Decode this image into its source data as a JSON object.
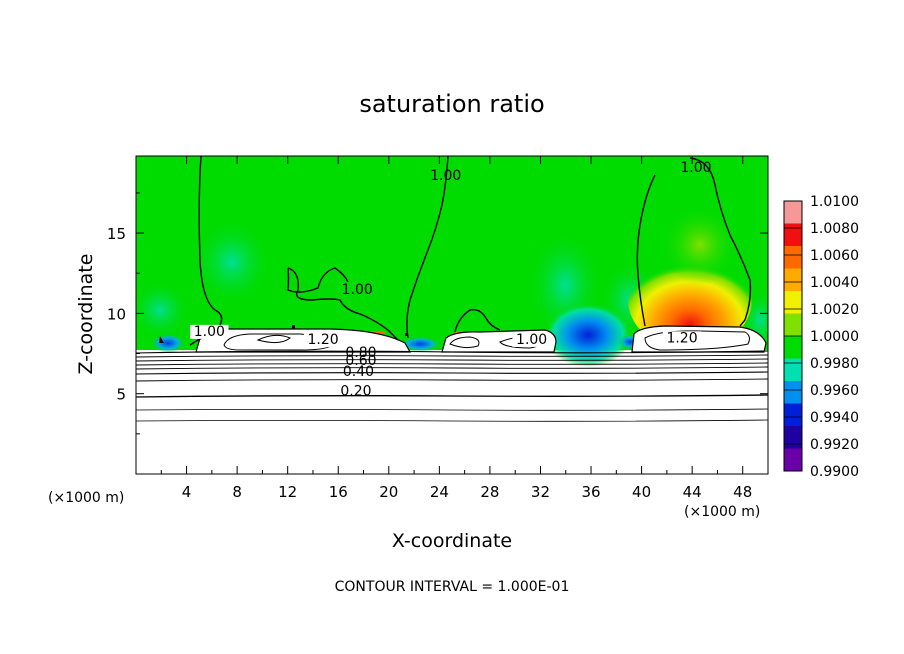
{
  "chart_data": {
    "type": "heatmap",
    "title": "saturation ratio",
    "xlabel": "X-coordinate",
    "ylabel": "Z-coordinate",
    "x_unit": "(×1000 m)",
    "y_unit": "(×1000 m)",
    "xlim": [
      0,
      50
    ],
    "ylim": [
      0,
      19.8
    ],
    "x_ticks": [
      "4",
      "8",
      "12",
      "16",
      "20",
      "24",
      "28",
      "32",
      "36",
      "40",
      "44",
      "48"
    ],
    "x_tick_values": [
      4,
      8,
      12,
      16,
      20,
      24,
      28,
      32,
      36,
      40,
      44,
      48
    ],
    "y_ticks": [
      "5",
      "10",
      "15"
    ],
    "y_tick_values": [
      5,
      10,
      15
    ],
    "colorbar": {
      "labels": [
        "1.0100",
        "1.0080",
        "1.0060",
        "1.0040",
        "1.0020",
        "1.0000",
        "0.9980",
        "0.9960",
        "0.9940",
        "0.9920",
        "0.9900"
      ],
      "values": [
        1.01,
        1.008,
        1.006,
        1.004,
        1.002,
        1.0,
        0.998,
        0.996,
        0.994,
        0.992,
        0.99
      ],
      "colors": [
        "#f59898",
        "#f01010",
        "#ff6a00",
        "#ffaa00",
        "#f0f000",
        "#80e000",
        "#00dc00",
        "#00e0b0",
        "#0090f0",
        "#0020d8",
        "#2000a0",
        "#6a00a8"
      ]
    },
    "contour_labels": [
      {
        "text": "1.00",
        "x": 24.5,
        "z": 18.3
      },
      {
        "text": "1.00",
        "x": 44.3,
        "z": 18.8
      },
      {
        "text": "1.00",
        "x": 17.5,
        "z": 11.2
      },
      {
        "text": "1.00",
        "x": 5.8,
        "z": 8.6
      },
      {
        "text": "1.00",
        "x": 31.3,
        "z": 8.1
      },
      {
        "text": "1.20",
        "x": 14.8,
        "z": 8.1
      },
      {
        "text": "1.20",
        "x": 43.2,
        "z": 8.2
      },
      {
        "text": "0.80",
        "x": 17.8,
        "z": 7.3
      },
      {
        "text": "0.60",
        "x": 17.8,
        "z": 6.8
      },
      {
        "text": "0.40",
        "x": 17.6,
        "z": 6.1
      },
      {
        "text": "0.20",
        "x": 17.4,
        "z": 4.9
      }
    ],
    "cloud_regions": [
      {
        "x": [
          4.6,
          20.8
        ],
        "z": [
          7.8,
          9.0
        ]
      },
      {
        "x": [
          24.5,
          33.4
        ],
        "z": [
          7.9,
          9.0
        ]
      },
      {
        "x": [
          39.8,
          49.0
        ],
        "z": [
          7.8,
          9.2
        ]
      }
    ]
  },
  "footer": "CONTOUR INTERVAL = 1.000E-01"
}
